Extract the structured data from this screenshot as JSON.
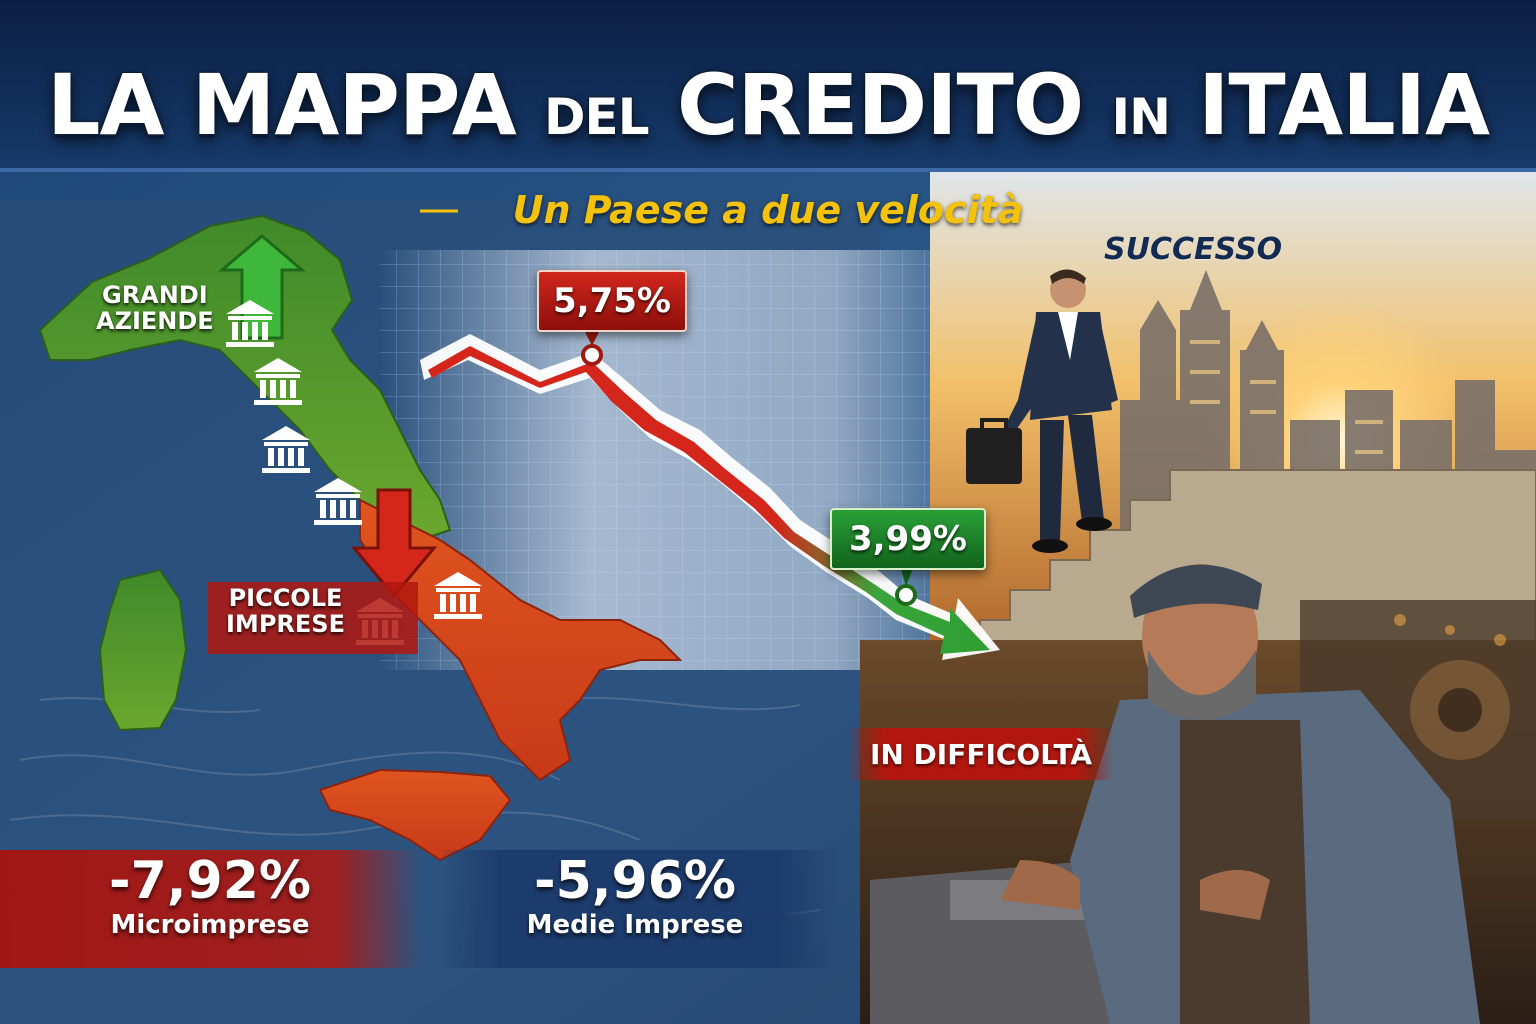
{
  "title": {
    "part1": "LA MAPPA",
    "part2": "DEL",
    "part3": "CREDITO",
    "part4": "IN",
    "part5": "ITALIA"
  },
  "subtitle": "Un Paese a due velocità",
  "map_labels": {
    "grandi": [
      "GRANDI",
      "AZIENDE"
    ],
    "piccole": [
      "PICCOLE",
      "IMPRESE"
    ]
  },
  "chart_tags": {
    "high": "5,75%",
    "low": "3,99%"
  },
  "right_labels": {
    "success": "SUCCESSO",
    "trouble": "IN DIFFICOLTÀ"
  },
  "stats": [
    {
      "value": "-7,92%",
      "caption": "Microimprese"
    },
    {
      "value": "-5,96%",
      "caption": "Medie Imprese"
    }
  ],
  "icons": {
    "bank": "bank-building-icon",
    "arrow_up": "arrow-up-icon",
    "arrow_down": "arrow-down-icon"
  },
  "colors": {
    "navy": "#16345c",
    "gold": "#f5c20b",
    "red": "#c8241b",
    "green": "#2e9e33"
  }
}
